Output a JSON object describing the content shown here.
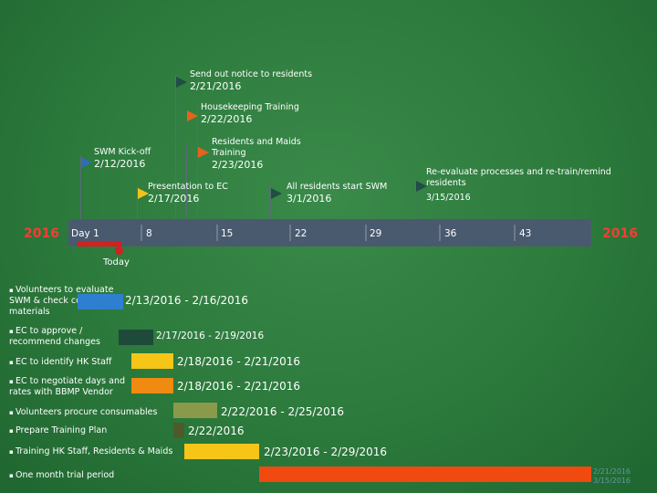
{
  "milestones": [
    {
      "label": "Send out notice to residents",
      "date": "2/21/2016",
      "color": "#1f4e45"
    },
    {
      "label": "Housekeeping Training",
      "date": "2/22/2016",
      "color": "#e8621a"
    },
    {
      "label": "Residents and Maids Training",
      "date": "2/23/2016",
      "color": "#e8621a"
    },
    {
      "label": "SWM Kick-off",
      "date": "2/12/2016",
      "color": "#2f6eb0"
    },
    {
      "label": "Presentation to EC",
      "date": "2/17/2016",
      "color": "#f0c419"
    },
    {
      "label": "All residents start SWM",
      "date": "3/1/2016",
      "color": "#1f4e45"
    },
    {
      "label": "Re-evaluate processes and re-train/remind residents",
      "date": "3/15/2016",
      "color": "#1f4e45"
    }
  ],
  "axis": {
    "year_left": "2016",
    "year_right": "2016",
    "ticks": [
      "Day 1",
      "8",
      "15",
      "22",
      "29",
      "36",
      "43"
    ],
    "today_label": "Today"
  },
  "tasks": [
    {
      "label": "Volunteers to evaluate SWM & check costs of materials",
      "dates": "2/13/2016 - 2/16/2016",
      "color": "#2f7fd0"
    },
    {
      "label": "EC to approve / recommend changes",
      "dates": "2/17/2016 - 2/19/2016",
      "color": "#1e4a3a"
    },
    {
      "label": "EC to identify HK Staff",
      "dates": "2/18/2016 - 2/21/2016",
      "color": "#f5c518"
    },
    {
      "label": "EC to negotiate days and rates with BBMP Vendor",
      "dates": "2/18/2016 - 2/21/2016",
      "color": "#f08a10"
    },
    {
      "label": "Volunteers procure consumables",
      "dates": "2/22/2016 - 2/25/2016",
      "color": "#8b9a4a"
    },
    {
      "label": "Prepare Training Plan",
      "dates": "2/22/2016",
      "color": "#4e5a2a"
    },
    {
      "label": "Training HK Staff, Residents & Maids",
      "dates": "2/23/2016 - 2/29/2016",
      "color": "#f5c518"
    },
    {
      "label": "One month trial period",
      "dates": "",
      "color": "#f04a10"
    }
  ],
  "watermark": [
    "2/21/2016",
    "3/15/2016"
  ]
}
